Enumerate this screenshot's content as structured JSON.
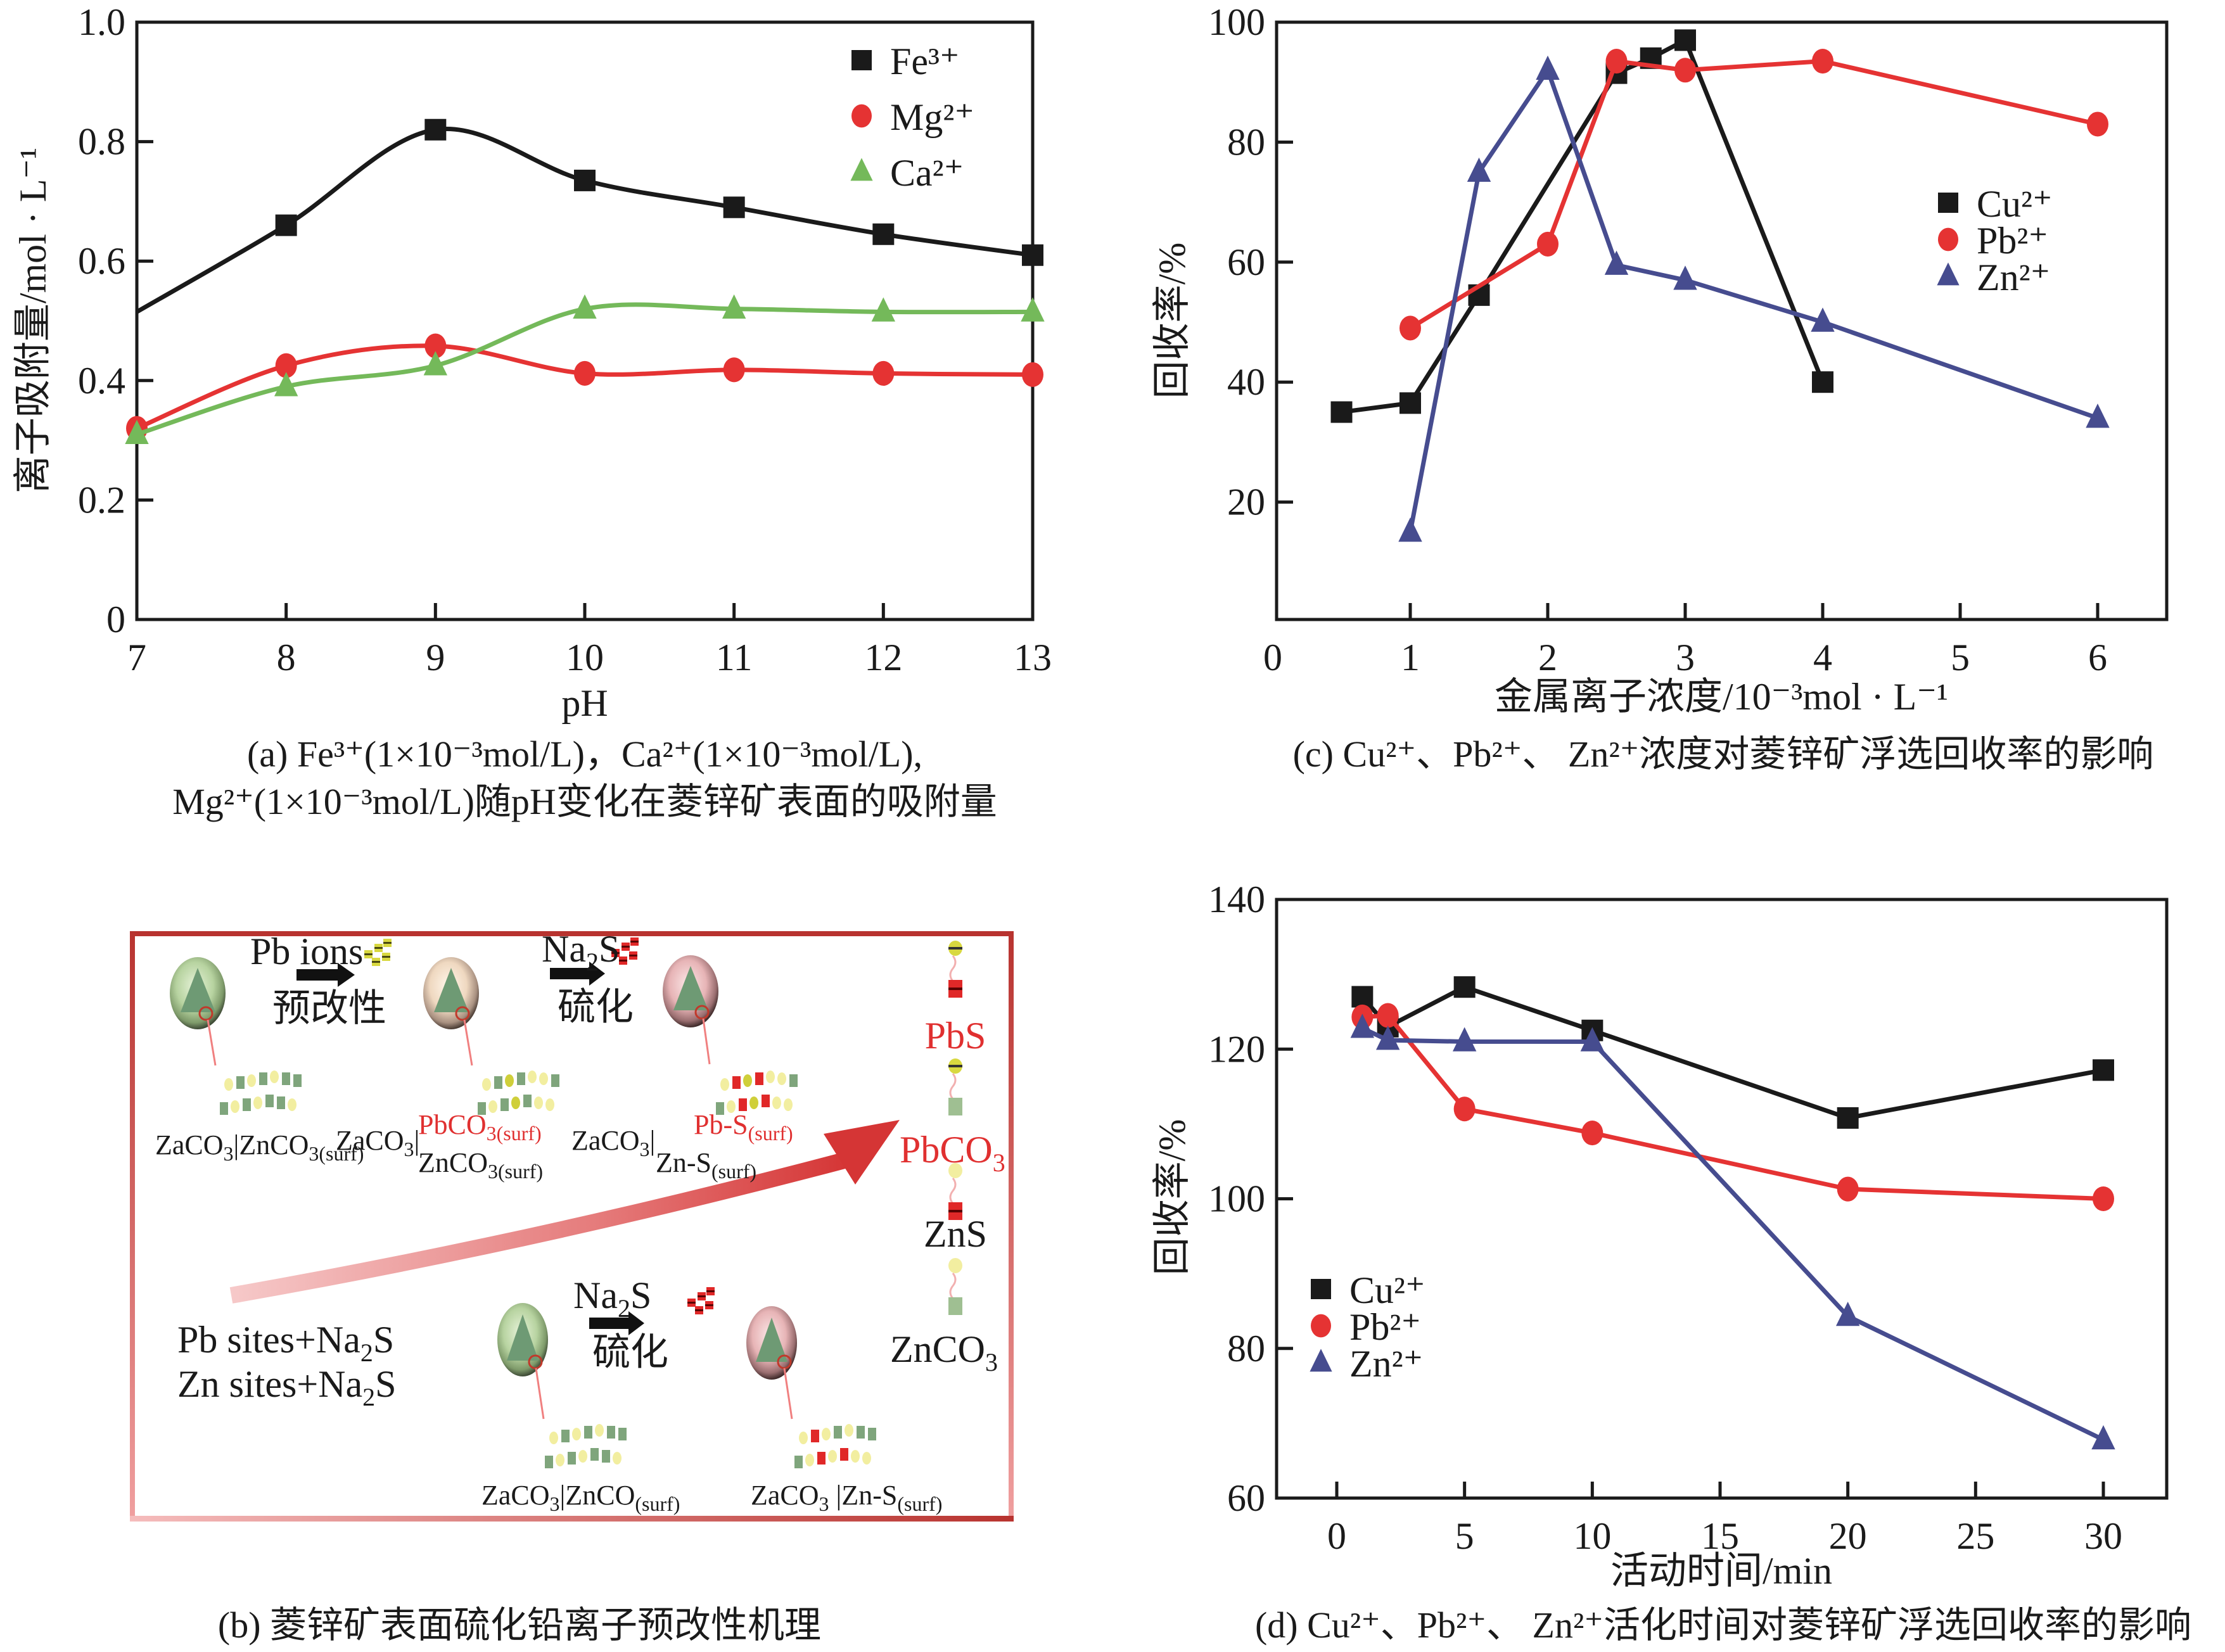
{
  "colors": {
    "black_series": "#1a1a1a",
    "red_series": "#e53333",
    "green_series": "#74b95a",
    "blue_series": "#464c8f",
    "frame_red": "#b8332f",
    "accent_red_text": "#e03030"
  },
  "chart_data": [
    {
      "id": "a",
      "type": "line",
      "smooth": true,
      "caption_line1": "(a) Fe³⁺(1×10⁻³mol/L)，Ca²⁺(1×10⁻³mol/L),",
      "caption_line2": "Mg²⁺(1×10⁻³mol/L)随pH变化在菱锌矿表面的吸附量",
      "xlabel": "pH",
      "ylabel": "离子吸附量/mol · L⁻¹",
      "xlim": [
        7,
        13
      ],
      "ylim": [
        0,
        1.0
      ],
      "xticks": [
        7,
        8,
        9,
        10,
        11,
        12,
        13
      ],
      "yticks": [
        0,
        0.2,
        0.4,
        0.6,
        0.8,
        1.0
      ],
      "ytick_labels": [
        "0",
        "0.2",
        "0.4",
        "0.6",
        "0.8",
        "1.0"
      ],
      "legend_position": "top-right",
      "series": [
        {
          "name": "Fe³⁺",
          "marker": "square",
          "color": "#1a1a1a",
          "x": [
            8,
            9,
            10,
            11,
            12,
            13
          ],
          "values": [
            0.66,
            0.82,
            0.735,
            0.69,
            0.645,
            0.61
          ],
          "curve_start": {
            "x": 7,
            "y": 0.515
          }
        },
        {
          "name": "Mg²⁺",
          "marker": "circle",
          "color": "#e53333",
          "x": [
            7,
            8,
            9,
            10,
            11,
            12,
            13
          ],
          "values": [
            0.32,
            0.425,
            0.458,
            0.412,
            0.418,
            0.412,
            0.41
          ]
        },
        {
          "name": "Ca²⁺",
          "marker": "triangle",
          "color": "#74b95a",
          "x": [
            7,
            8,
            9,
            10,
            11,
            12,
            13
          ],
          "values": [
            0.31,
            0.39,
            0.425,
            0.52,
            0.52,
            0.515,
            0.515
          ]
        }
      ]
    },
    {
      "id": "c",
      "type": "line",
      "smooth": false,
      "caption": "(c) Cu²⁺、Pb²⁺、 Zn²⁺浓度对菱锌矿浮选回收率的影响",
      "xlabel": "金属离子浓度/10⁻³mol · L⁻¹",
      "ylabel": "回收率/%",
      "xlim": [
        0,
        6.5
      ],
      "ylim": [
        0,
        100
      ],
      "xticks": [
        0,
        1,
        2,
        3,
        4,
        5,
        6
      ],
      "yticks": [
        20,
        40,
        60,
        80,
        100
      ],
      "legend_position": "right",
      "series": [
        {
          "name": "Cu²⁺",
          "marker": "square",
          "color": "#1a1a1a",
          "x": [
            0.5,
            1,
            1.5,
            2.5,
            2.75,
            3,
            4
          ],
          "values": [
            35,
            36.5,
            54.5,
            91.5,
            94,
            97,
            40
          ]
        },
        {
          "name": "Pb²⁺",
          "marker": "circle",
          "color": "#e53333",
          "x": [
            1,
            2,
            2.5,
            3,
            4,
            6
          ],
          "values": [
            49,
            63,
            93.5,
            92,
            93.5,
            83
          ]
        },
        {
          "name": "Zn²⁺",
          "marker": "triangle",
          "color": "#464c8f",
          "x": [
            1,
            1.5,
            2,
            2.5,
            3,
            4,
            6
          ],
          "values": [
            15,
            75,
            92,
            59.5,
            57,
            50,
            34
          ]
        }
      ]
    },
    {
      "id": "d",
      "type": "line",
      "smooth": false,
      "caption": "(d) Cu²⁺、Pb²⁺、 Zn²⁺活化时间对菱锌矿浮选回收率的影响",
      "xlabel": "活动时间/min",
      "ylabel": "回收率/%",
      "xlim": [
        -2.5,
        32.5
      ],
      "ylim": [
        60,
        140
      ],
      "xticks": [
        0,
        5,
        10,
        15,
        20,
        25,
        30
      ],
      "yticks": [
        60,
        80,
        100,
        120,
        140
      ],
      "legend_position": "bottom-left",
      "series": [
        {
          "name": "Cu²⁺",
          "marker": "square",
          "color": "#1a1a1a",
          "x": [
            1,
            2,
            5,
            10,
            20,
            30
          ],
          "values": [
            127,
            123,
            128.3,
            122.5,
            110.8,
            117.2
          ]
        },
        {
          "name": "Pb²⁺",
          "marker": "circle",
          "color": "#e53333",
          "x": [
            1,
            2,
            5,
            10,
            20,
            30
          ],
          "values": [
            124.3,
            124.5,
            112,
            108.8,
            101.3,
            100
          ]
        },
        {
          "name": "Zn²⁺",
          "marker": "triangle",
          "color": "#464c8f",
          "x": [
            1,
            2,
            5,
            10,
            20,
            30
          ],
          "values": [
            122.8,
            121.2,
            121,
            121,
            84.3,
            67.8
          ]
        }
      ]
    }
  ],
  "diagram": {
    "caption": "(b) 菱锌矿表面硫化铅离子预改性机理",
    "top_row": {
      "arrow1_top": "Pb ions",
      "arrow1_bottom": "预改性",
      "arrow2_top_main": "Na",
      "arrow2_top_sub": "2",
      "arrow2_top_end": "S",
      "arrow2_bottom": "硫化",
      "label1_main": "ZaCO",
      "label1_sub": "3",
      "label1_mid": "|ZnCO",
      "label1_sub2": "3(surf)",
      "label2_main": "ZaCO",
      "label2_sub": "3",
      "label2_top_red": "PbCO",
      "label2_top_red_sub": "3(surf)",
      "label2_bottom": "ZnCO",
      "label2_bottom_sub": "3(surf)",
      "label3_main": "ZaCO",
      "label3_sub": "3",
      "label3_top_red": "Pb-S",
      "label3_top_red_sub": "(surf)",
      "label3_bottom": "Zn-S",
      "label3_bottom_sub": "(surf)"
    },
    "bottom_row": {
      "sites_line1_a": "Pb sites+Na",
      "sites_line1_sub": "2",
      "sites_line1_b": "S",
      "sites_line2_a": "Zn sites+Na",
      "sites_line2_sub": "2",
      "sites_line2_b": "S",
      "arrow_top_main": "Na",
      "arrow_top_sub": "2",
      "arrow_top_end": "S",
      "arrow_bottom": "硫化",
      "label1_main": "ZaCO",
      "label1_sub": "3",
      "label1_mid": "|ZnCO",
      "label1_sub2": "(surf)",
      "label2_main": "ZaCO",
      "label2_sub": "3",
      "label2_mid": " |Zn-S",
      "label2_sub2": "(surf)"
    },
    "right_column": {
      "pbs": "PbS",
      "pbco3_main": "PbCO",
      "pbco3_sub": "3",
      "zns": "ZnS",
      "znco3_main": "ZnCO",
      "znco3_sub": "3"
    }
  }
}
